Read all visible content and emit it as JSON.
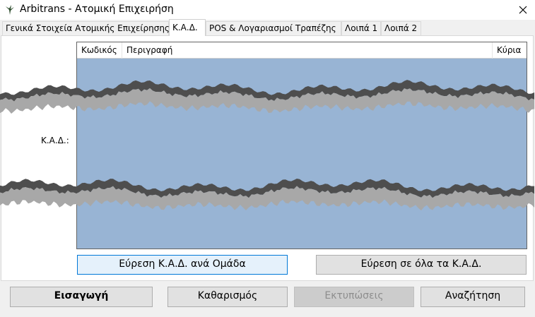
{
  "window": {
    "title": "Arbitrans - Ατομική Επιχειρήση"
  },
  "tabs": [
    "Γενικά Στοιχεία Ατομικής Επιχείρησης",
    "Κ.Α.Δ.",
    "POS & Λογαριασμοί Τραπέζης",
    "Λοιπά 1",
    "Λοιπά 2"
  ],
  "form": {
    "label": "Κ.Α.Δ.:",
    "grid": {
      "columns": [
        "Κωδικός",
        "Περιγραφή",
        "Κύρια"
      ]
    },
    "buttons": [
      "Εύρεση Κ.Α.Δ. ανά Ομάδα",
      "Εύρεση σε όλα τα Κ.Α.Δ."
    ]
  },
  "footer": {
    "buttons": [
      "Εισαγωγή",
      "Καθαρισμός",
      "Εκτυπώσεις",
      "Αναζήτηση"
    ]
  }
}
